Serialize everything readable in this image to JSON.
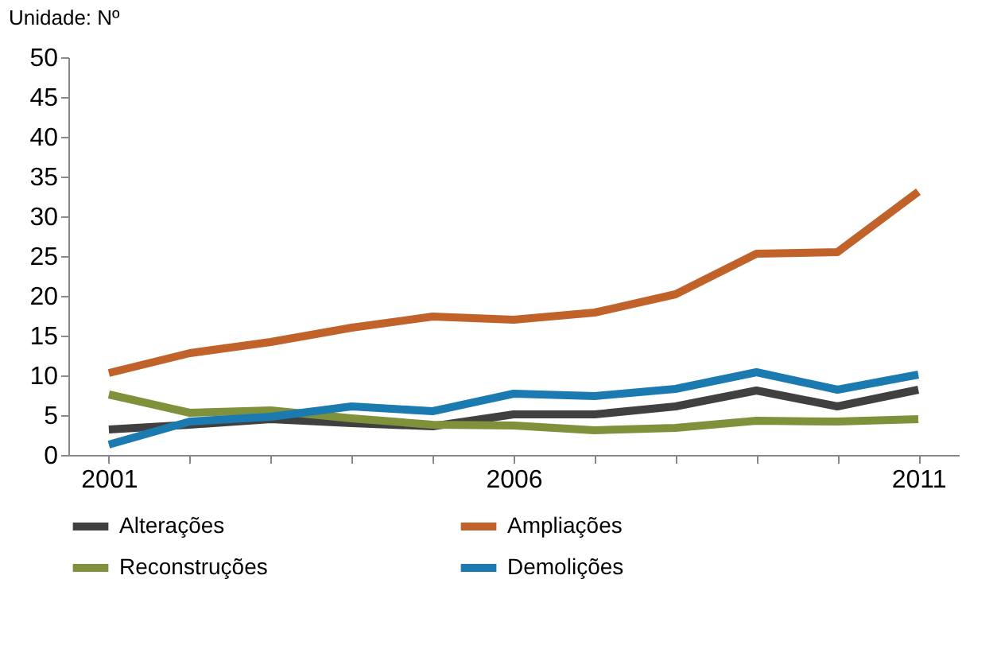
{
  "chart_data": {
    "type": "line",
    "ylabel": "Unidade: Nº",
    "categories": [
      "2001",
      null,
      null,
      null,
      null,
      "2006",
      null,
      null,
      null,
      null,
      "2011"
    ],
    "series": [
      {
        "name": "Alterações",
        "color": "#404040",
        "values": [
          3.2,
          3.8,
          4.5,
          4.0,
          3.6,
          5.1,
          5.1,
          6.1,
          8.1,
          6.1,
          8.2
        ]
      },
      {
        "name": "Ampliações",
        "color": "#c0622a",
        "values": [
          10.3,
          12.8,
          14.2,
          16.0,
          17.4,
          17.0,
          17.9,
          20.2,
          25.3,
          25.5,
          33.1
        ]
      },
      {
        "name": "Reconstruções",
        "color": "#7f913b",
        "values": [
          7.6,
          5.3,
          5.6,
          4.6,
          3.8,
          3.7,
          3.1,
          3.4,
          4.3,
          4.2,
          4.5
        ]
      },
      {
        "name": "Demolições",
        "color": "#1b7bb0",
        "values": [
          1.3,
          4.2,
          4.8,
          6.1,
          5.5,
          7.7,
          7.4,
          8.3,
          10.4,
          8.2,
          10.1
        ]
      }
    ],
    "ylim": [
      0,
      50
    ],
    "yticks": [
      0,
      5,
      10,
      15,
      20,
      25,
      30,
      35,
      40,
      45,
      50
    ],
    "grid": false,
    "legend": "bottom",
    "marker": "none",
    "line_style": "solid"
  }
}
